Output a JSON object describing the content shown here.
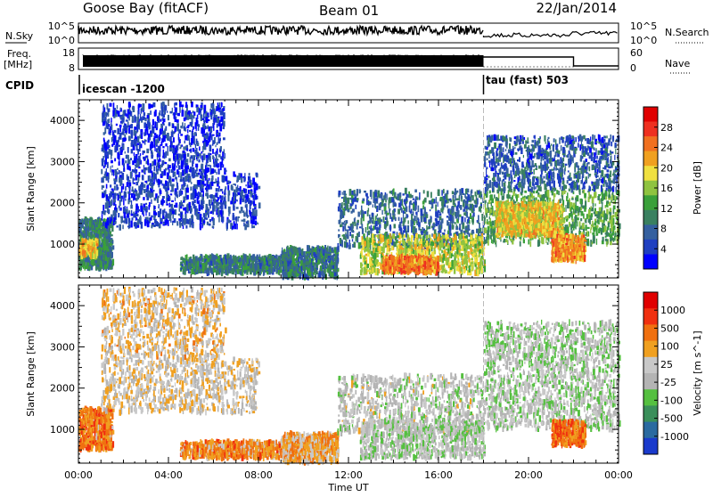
{
  "header": {
    "station": "Goose Bay (fitACF)",
    "beam": "Beam 01",
    "date": "22/Jan/2014"
  },
  "nsky_panel": {
    "left_label": "N.Sky",
    "right_label": "N.Search",
    "left_ticks": [
      "10^5",
      "10^0"
    ],
    "right_ticks": [
      "10^5",
      "10^0"
    ]
  },
  "freq_panel": {
    "left_label_line1": "Freq.",
    "left_label_line2": "[MHz]",
    "right_label": "Nave",
    "left_ticks": [
      "18",
      "8"
    ],
    "right_ticks": [
      "60",
      "0"
    ]
  },
  "cpid": {
    "label": "CPID",
    "mode1": "icescan -1200",
    "mode2": "tau (fast) 503",
    "mode_change_hour": 18
  },
  "chart_data": [
    {
      "type": "heatmap",
      "title": "",
      "xlabel": "Time UT",
      "ylabel": "Slant Range [km]",
      "xlim": [
        0,
        24
      ],
      "ylim": [
        180,
        4500
      ],
      "x_ticks": [
        "00:00",
        "04:00",
        "08:00",
        "12:00",
        "16:00",
        "20:00",
        "00:00"
      ],
      "y_ticks": [
        1000,
        2000,
        3000,
        4000
      ],
      "colorbar": {
        "label": "Power [dB]",
        "ticks": [
          "4",
          "8",
          "12",
          "16",
          "20",
          "24",
          "28"
        ],
        "colors": [
          "#0000ff",
          "#1f3fc0",
          "#35609f",
          "#3a8060",
          "#3aa03a",
          "#8fc340",
          "#f0e040",
          "#f0a020",
          "#f07020",
          "#ee3020",
          "#e00000"
        ],
        "range": [
          0,
          32
        ]
      },
      "regions": [
        {
          "t0": 0.0,
          "t1": 1.5,
          "r0": 400,
          "r1": 1600,
          "level": 0.3
        },
        {
          "t0": 0.0,
          "t1": 0.8,
          "r0": 700,
          "r1": 1100,
          "level": 0.65
        },
        {
          "t0": 1.0,
          "t1": 8.0,
          "r0": 1400,
          "r1": 2700,
          "level": 0.1
        },
        {
          "t0": 1.0,
          "t1": 6.5,
          "r0": 2700,
          "r1": 4400,
          "level": 0.08
        },
        {
          "t0": 4.5,
          "t1": 9.5,
          "r0": 300,
          "r1": 700,
          "level": 0.28
        },
        {
          "t0": 9.0,
          "t1": 11.5,
          "r0": 200,
          "r1": 900,
          "level": 0.25
        },
        {
          "t0": 11.5,
          "t1": 18.0,
          "r0": 900,
          "r1": 2300,
          "level": 0.22
        },
        {
          "t0": 12.5,
          "t1": 18.0,
          "r0": 300,
          "r1": 1200,
          "level": 0.55
        },
        {
          "t0": 13.5,
          "t1": 16.0,
          "r0": 300,
          "r1": 700,
          "level": 0.78
        },
        {
          "t0": 18.0,
          "t1": 24.0,
          "r0": 1000,
          "r1": 2300,
          "level": 0.4
        },
        {
          "t0": 18.5,
          "t1": 21.5,
          "r0": 1200,
          "r1": 2000,
          "level": 0.62
        },
        {
          "t0": 18.0,
          "t1": 24.0,
          "r0": 2300,
          "r1": 3600,
          "level": 0.18
        },
        {
          "t0": 21.0,
          "t1": 22.5,
          "r0": 600,
          "r1": 1200,
          "level": 0.75
        }
      ]
    },
    {
      "type": "heatmap",
      "title": "",
      "xlabel": "Time UT",
      "ylabel": "Slant Range [km]",
      "xlim": [
        0,
        24
      ],
      "ylim": [
        180,
        4500
      ],
      "x_ticks": [
        "00:00",
        "04:00",
        "08:00",
        "12:00",
        "16:00",
        "20:00",
        "00:00"
      ],
      "y_ticks": [
        1000,
        2000,
        3000,
        4000
      ],
      "colorbar": {
        "label": "Velocity [m s^-1]",
        "ticks": [
          "1000",
          "500",
          "100",
          "25",
          "-25",
          "-100",
          "-500",
          "-1000"
        ],
        "colors": [
          "#1a3acc",
          "#2a6aa0",
          "#3a8f5a",
          "#55c040",
          "#b4b4b4",
          "#c8c8c8",
          "#f0a020",
          "#f07010",
          "#f03010",
          "#e00000"
        ],
        "range": [
          -1000,
          1000
        ]
      },
      "regions": [
        {
          "t0": 0.0,
          "t1": 1.5,
          "r0": 500,
          "r1": 1500,
          "level": 0.75
        },
        {
          "t0": 1.0,
          "t1": 8.0,
          "r0": 1400,
          "r1": 2700,
          "level": 0.55
        },
        {
          "t0": 1.0,
          "t1": 6.5,
          "r0": 2700,
          "r1": 4400,
          "level": 0.6
        },
        {
          "t0": 4.5,
          "t1": 9.5,
          "r0": 300,
          "r1": 700,
          "level": 0.72
        },
        {
          "t0": 9.0,
          "t1": 11.5,
          "r0": 200,
          "r1": 900,
          "level": 0.65
        },
        {
          "t0": 11.5,
          "t1": 18.0,
          "r0": 900,
          "r1": 2300,
          "level": 0.48
        },
        {
          "t0": 12.5,
          "t1": 18.0,
          "r0": 300,
          "r1": 1200,
          "level": 0.46
        },
        {
          "t0": 18.0,
          "t1": 24.0,
          "r0": 1000,
          "r1": 2300,
          "level": 0.46
        },
        {
          "t0": 18.0,
          "t1": 24.0,
          "r0": 2300,
          "r1": 3600,
          "level": 0.45
        },
        {
          "t0": 21.0,
          "t1": 22.5,
          "r0": 600,
          "r1": 1200,
          "level": 0.78
        }
      ]
    }
  ]
}
